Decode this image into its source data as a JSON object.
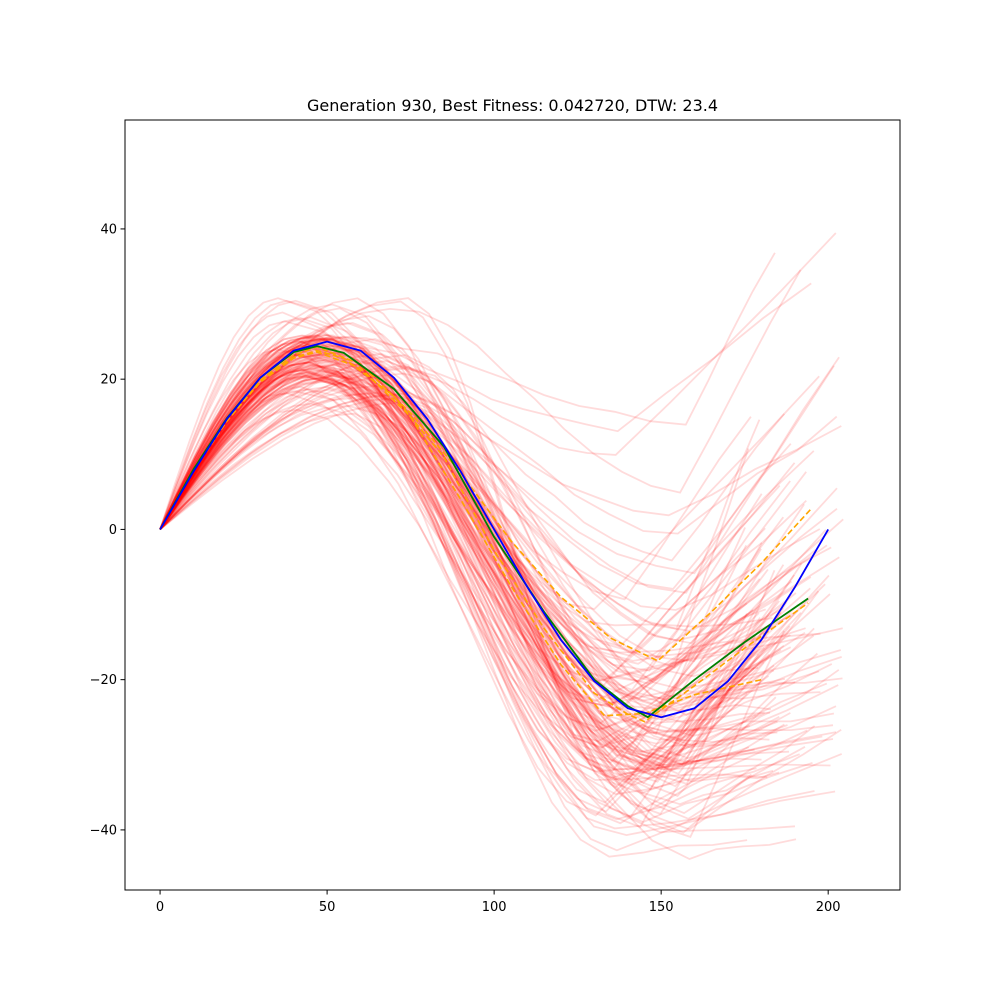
{
  "chart_data": {
    "type": "line",
    "title": "Generation 930, Best Fitness: 0.042720, DTW: 23.4",
    "xlabel": "",
    "ylabel": "",
    "xlim": [
      -10.5,
      221.5
    ],
    "ylim": [
      -48,
      54.5
    ],
    "xticks": [
      0,
      50,
      100,
      150,
      200
    ],
    "xtick_labels": [
      "0",
      "50",
      "100",
      "150",
      "200"
    ],
    "yticks": [
      -40,
      -20,
      0,
      20,
      40
    ],
    "ytick_labels": [
      "−40",
      "−20",
      "0",
      "20",
      "40"
    ],
    "grid": false,
    "legend": "none",
    "colors": {
      "target": "#0000ff",
      "best": "#008000",
      "elite": "#ffa500",
      "population": "#ff0000"
    },
    "series": [
      {
        "role": "target",
        "color": "#0000ff",
        "style": "solid",
        "x": [
          0,
          10,
          20,
          30,
          40,
          50,
          60,
          70,
          80,
          90,
          100,
          110,
          120,
          130,
          140,
          150,
          160,
          170,
          180,
          190,
          200
        ],
        "y": [
          0,
          7.7,
          14.7,
          20.2,
          23.8,
          25.0,
          23.8,
          20.2,
          14.7,
          7.7,
          0,
          -7.7,
          -14.7,
          -20.2,
          -23.8,
          -25.0,
          -23.8,
          -20.2,
          -14.7,
          -7.7,
          0
        ]
      },
      {
        "role": "best",
        "color": "#008000",
        "style": "solid",
        "x": [
          0,
          10,
          20,
          30,
          40,
          47,
          55,
          70,
          85,
          100,
          115,
          130,
          140,
          146,
          160,
          175,
          194
        ],
        "y": [
          0,
          8.0,
          14.8,
          20.2,
          23.6,
          24.4,
          23.5,
          18.7,
          11.0,
          -1.0,
          -11.0,
          -20.0,
          -23.5,
          -25.0,
          -20.0,
          -15.0,
          -9.2
        ]
      },
      {
        "role": "elite",
        "color": "#ffa500",
        "style": "dashed",
        "x": [
          0,
          10,
          20,
          30,
          40,
          47,
          55,
          70,
          85,
          100,
          115,
          130,
          140,
          145,
          160,
          175,
          194
        ],
        "y": [
          0,
          7.8,
          14.4,
          19.7,
          22.9,
          23.8,
          22.8,
          17.7,
          9.6,
          -2.8,
          -13.2,
          -21.8,
          -24.6,
          -25.6,
          -20.8,
          -15.8,
          -9.8
        ]
      },
      {
        "role": "elite",
        "color": "#ffa500",
        "style": "dashed",
        "x": [
          0,
          10,
          20,
          30,
          40,
          47,
          60,
          75,
          90,
          105,
          120,
          135,
          149,
          165,
          180,
          195
        ],
        "y": [
          0,
          7.8,
          14.6,
          19.9,
          23.2,
          24.3,
          22.0,
          15.5,
          7.5,
          -1.5,
          -9.0,
          -14.5,
          -17.5,
          -11.0,
          -4.5,
          2.8
        ]
      },
      {
        "role": "elite",
        "color": "#ffa500",
        "style": "dashed",
        "x": [
          0,
          10,
          20,
          30,
          40,
          47,
          60,
          75,
          90,
          105,
          120,
          133,
          145,
          160,
          180
        ],
        "y": [
          0,
          7.8,
          14.5,
          19.6,
          22.8,
          23.6,
          21.5,
          15.0,
          4.0,
          -7.5,
          -18.0,
          -24.8,
          -24.5,
          -22.0,
          -20.0
        ]
      }
    ],
    "population": {
      "color": "#ff0000",
      "opacity": 0.14,
      "count": 150,
      "x_start": 0,
      "x_end_range": [
        175,
        212
      ],
      "peak_x_range": [
        35,
        75
      ],
      "peak_y_range": [
        15,
        31
      ],
      "trough_x_range": [
        130,
        160
      ],
      "trough_y_range": [
        -44,
        20
      ],
      "end_y_range": [
        -41,
        50
      ]
    }
  }
}
